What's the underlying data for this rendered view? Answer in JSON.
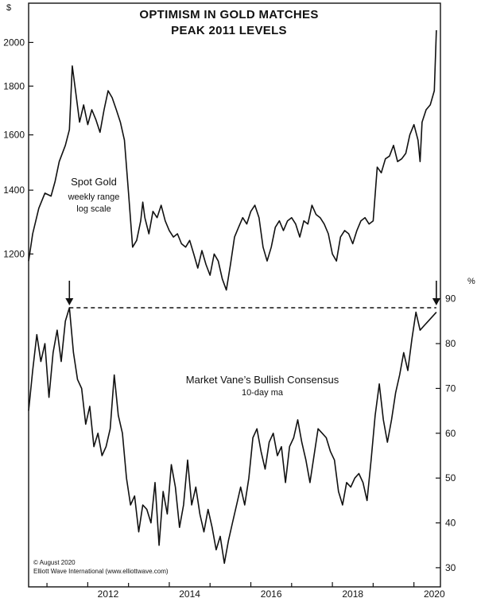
{
  "chart_data": [
    {
      "type": "line",
      "title": "OPTIMISM IN GOLD MATCHES",
      "subtitle": "PEAK 2011 LEVELS",
      "y_unit": "$",
      "y_scale": "log",
      "ylim": [
        1110,
        2100
      ],
      "yticks": [
        1200,
        1400,
        1600,
        1800,
        2000
      ],
      "xlim": [
        2010.55,
        2020.65
      ],
      "xticks": [
        "2012",
        "2014",
        "2016",
        "2018",
        "2020"
      ],
      "annotation": "Spot Gold",
      "annotation_sub": [
        "weekly range",
        "log scale"
      ],
      "series": [
        {
          "x": [
            2010.55,
            2010.65,
            2010.8,
            2010.95,
            2011.1,
            2011.2,
            2011.3,
            2011.45,
            2011.55,
            2011.62,
            2011.7,
            2011.8,
            2011.9,
            2012.0,
            2012.1,
            2012.2,
            2012.3,
            2012.4,
            2012.5,
            2012.6,
            2012.7,
            2012.8,
            2012.9,
            2013.0,
            2013.1,
            2013.2,
            2013.3,
            2013.35,
            2013.4,
            2013.5,
            2013.6,
            2013.7,
            2013.8,
            2013.9,
            2014.0,
            2014.1,
            2014.2,
            2014.3,
            2014.4,
            2014.5,
            2014.6,
            2014.7,
            2014.8,
            2014.9,
            2015.0,
            2015.1,
            2015.2,
            2015.3,
            2015.4,
            2015.5,
            2015.6,
            2015.7,
            2015.8,
            2015.9,
            2016.0,
            2016.1,
            2016.2,
            2016.3,
            2016.4,
            2016.5,
            2016.6,
            2016.7,
            2016.8,
            2016.9,
            2017.0,
            2017.1,
            2017.2,
            2017.3,
            2017.4,
            2017.5,
            2017.6,
            2017.7,
            2017.8,
            2017.9,
            2018.0,
            2018.1,
            2018.2,
            2018.3,
            2018.4,
            2018.5,
            2018.6,
            2018.7,
            2018.8,
            2018.9,
            2019.0,
            2019.1,
            2019.2,
            2019.3,
            2019.4,
            2019.5,
            2019.6,
            2019.7,
            2019.8,
            2019.9,
            2020.0,
            2020.1,
            2020.15,
            2020.2,
            2020.3,
            2020.4,
            2020.5,
            2020.55
          ],
          "y": [
            1180,
            1260,
            1340,
            1390,
            1380,
            1430,
            1500,
            1560,
            1620,
            1890,
            1780,
            1650,
            1720,
            1640,
            1700,
            1660,
            1610,
            1700,
            1780,
            1750,
            1700,
            1650,
            1580,
            1390,
            1220,
            1240,
            1300,
            1360,
            1310,
            1260,
            1330,
            1310,
            1350,
            1300,
            1270,
            1250,
            1260,
            1230,
            1220,
            1240,
            1200,
            1160,
            1210,
            1170,
            1140,
            1200,
            1180,
            1130,
            1100,
            1170,
            1250,
            1280,
            1310,
            1290,
            1330,
            1350,
            1310,
            1220,
            1180,
            1220,
            1280,
            1300,
            1270,
            1300,
            1310,
            1290,
            1250,
            1300,
            1290,
            1350,
            1320,
            1310,
            1290,
            1260,
            1200,
            1180,
            1250,
            1270,
            1260,
            1230,
            1270,
            1300,
            1310,
            1290,
            1300,
            1480,
            1460,
            1510,
            1520,
            1560,
            1500,
            1510,
            1530,
            1600,
            1640,
            1580,
            1500,
            1650,
            1700,
            1720,
            1780,
            2060
          ]
        }
      ]
    },
    {
      "type": "line",
      "y_unit": "%",
      "ylim": [
        27.5,
        93.5
      ],
      "yticks": [
        30,
        40,
        50,
        60,
        70,
        80,
        90
      ],
      "xlim": [
        2010.55,
        2020.65
      ],
      "xticks": [
        "2012",
        "2014",
        "2016",
        "2018",
        "2020"
      ],
      "annotation": "Market Vane’s Bullish Consensus",
      "annotation_sub": [
        "10-day ma"
      ],
      "reference_line": 88,
      "peak_markers_x": [
        2011.55,
        2020.55
      ],
      "series": [
        {
          "x": [
            2010.55,
            2010.65,
            2010.75,
            2010.85,
            2010.95,
            2011.05,
            2011.15,
            2011.25,
            2011.35,
            2011.45,
            2011.55,
            2011.65,
            2011.75,
            2011.85,
            2011.95,
            2012.05,
            2012.15,
            2012.25,
            2012.35,
            2012.45,
            2012.55,
            2012.65,
            2012.75,
            2012.85,
            2012.95,
            2013.05,
            2013.15,
            2013.25,
            2013.35,
            2013.45,
            2013.55,
            2013.65,
            2013.75,
            2013.85,
            2013.95,
            2014.05,
            2014.15,
            2014.25,
            2014.35,
            2014.45,
            2014.55,
            2014.65,
            2014.75,
            2014.85,
            2014.95,
            2015.05,
            2015.15,
            2015.25,
            2015.35,
            2015.45,
            2015.55,
            2015.65,
            2015.75,
            2015.85,
            2015.95,
            2016.05,
            2016.15,
            2016.25,
            2016.35,
            2016.45,
            2016.55,
            2016.65,
            2016.75,
            2016.85,
            2016.95,
            2017.05,
            2017.15,
            2017.25,
            2017.35,
            2017.45,
            2017.55,
            2017.65,
            2017.75,
            2017.85,
            2017.95,
            2018.05,
            2018.15,
            2018.25,
            2018.35,
            2018.45,
            2018.55,
            2018.65,
            2018.75,
            2018.85,
            2018.95,
            2019.05,
            2019.15,
            2019.25,
            2019.35,
            2019.45,
            2019.55,
            2019.65,
            2019.75,
            2019.85,
            2019.95,
            2020.05,
            2020.15,
            2020.25,
            2020.35,
            2020.45,
            2020.55
          ],
          "y": [
            65,
            74,
            82,
            76,
            80,
            68,
            78,
            83,
            76,
            85,
            88,
            78,
            72,
            70,
            62,
            66,
            57,
            60,
            55,
            57,
            61,
            73,
            64,
            60,
            50,
            44,
            46,
            38,
            44,
            43,
            40,
            49,
            35,
            47,
            42,
            53,
            48,
            39,
            44,
            54,
            44,
            48,
            42,
            38,
            43,
            39,
            34,
            37,
            31,
            36,
            40,
            44,
            48,
            44,
            50,
            59,
            61,
            56,
            52,
            58,
            60,
            55,
            57,
            49,
            57,
            59,
            63,
            58,
            54,
            49,
            55,
            61,
            60,
            59,
            56,
            54,
            47,
            44,
            49,
            48,
            50,
            51,
            49,
            45,
            54,
            64,
            71,
            63,
            58,
            63,
            69,
            73,
            78,
            74,
            81,
            87,
            83,
            84,
            85,
            86,
            87
          ]
        }
      ]
    }
  ],
  "footer": {
    "copyright": "© August 2020",
    "source": "Elliott Wave International (www.elliottwave.com)"
  }
}
